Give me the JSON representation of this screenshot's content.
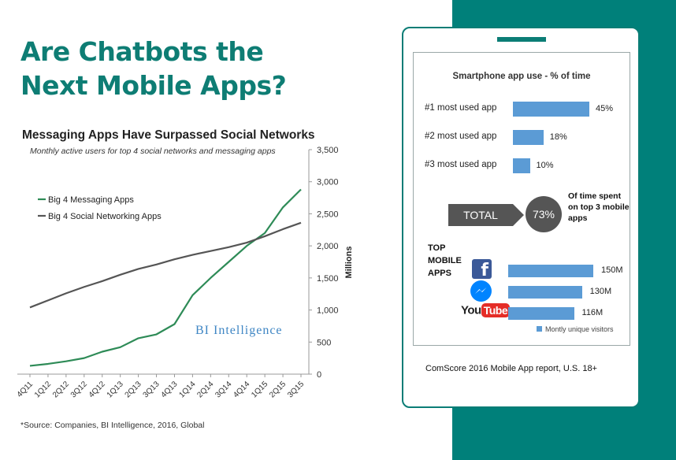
{
  "headline": {
    "line1": "Are Chatbots the",
    "line2": "Next Mobile Apps?"
  },
  "source_note": "*Source: Companies, BI Intelligence, 2016, Global",
  "watermark": "BI Intelligence",
  "phone": {
    "footer": "ComScore 2016 Mobile App report, U.S. 18+",
    "total_label": "TOTAL",
    "total_value": "73%",
    "total_caption": "Of time spent on top 3 mobile apps",
    "top_apps_label": "TOP MOBILE APPS",
    "app_icons": [
      "facebook-icon",
      "messenger-icon",
      "youtube-logo"
    ],
    "youtube_logo_text": {
      "you": "You",
      "tube": "Tube"
    },
    "colors": {
      "bar": "#5b9bd5",
      "teal": "#00807a",
      "total": "#555555"
    }
  },
  "chart_data": [
    {
      "type": "line",
      "title": "Messaging Apps Have Surpassed Social Networks",
      "subtitle": "Monthly active users for top 4 social networks and messaging apps",
      "ylabel": "Millions",
      "xlabel": "",
      "ylim": [
        0,
        3500
      ],
      "yticks": [
        0,
        500,
        1000,
        1500,
        2000,
        2500,
        3000,
        3500
      ],
      "ytick_labels": [
        "0",
        "500",
        "1,000",
        "1,500",
        "2,000",
        "2,500",
        "3,000",
        "3,500"
      ],
      "grid": false,
      "legend_position": "left",
      "categories": [
        "4Q11",
        "1Q12",
        "2Q12",
        "3Q12",
        "4Q12",
        "1Q13",
        "2Q13",
        "3Q13",
        "4Q13",
        "1Q14",
        "2Q14",
        "3Q14",
        "4Q14",
        "1Q15",
        "2Q15",
        "3Q15"
      ],
      "series": [
        {
          "name": "Big 4 Messaging Apps",
          "color": "#2e8b57",
          "values": [
            130,
            160,
            200,
            250,
            350,
            420,
            560,
            620,
            780,
            1230,
            1500,
            1750,
            2000,
            2200,
            2600,
            2880
          ]
        },
        {
          "name": "Big 4 Social Networking Apps",
          "color": "#555555",
          "values": [
            1040,
            1150,
            1260,
            1360,
            1450,
            1550,
            1640,
            1710,
            1790,
            1860,
            1920,
            1980,
            2050,
            2150,
            2260,
            2360
          ]
        }
      ]
    },
    {
      "type": "bar",
      "title": "Smartphone app use - % of time",
      "categories": [
        "#1 most used app",
        "#2 most used app",
        "#3 most used app"
      ],
      "values": [
        45,
        18,
        10
      ],
      "value_labels": [
        "45%",
        "18%",
        "10%"
      ],
      "unit": "%"
    },
    {
      "type": "bar",
      "title": "",
      "categories": [
        "Facebook",
        "Messenger",
        "YouTube"
      ],
      "values": [
        150,
        130,
        116
      ],
      "value_labels": [
        "150M",
        "130M",
        "116M"
      ],
      "legend": "Montly unique visitors"
    }
  ]
}
